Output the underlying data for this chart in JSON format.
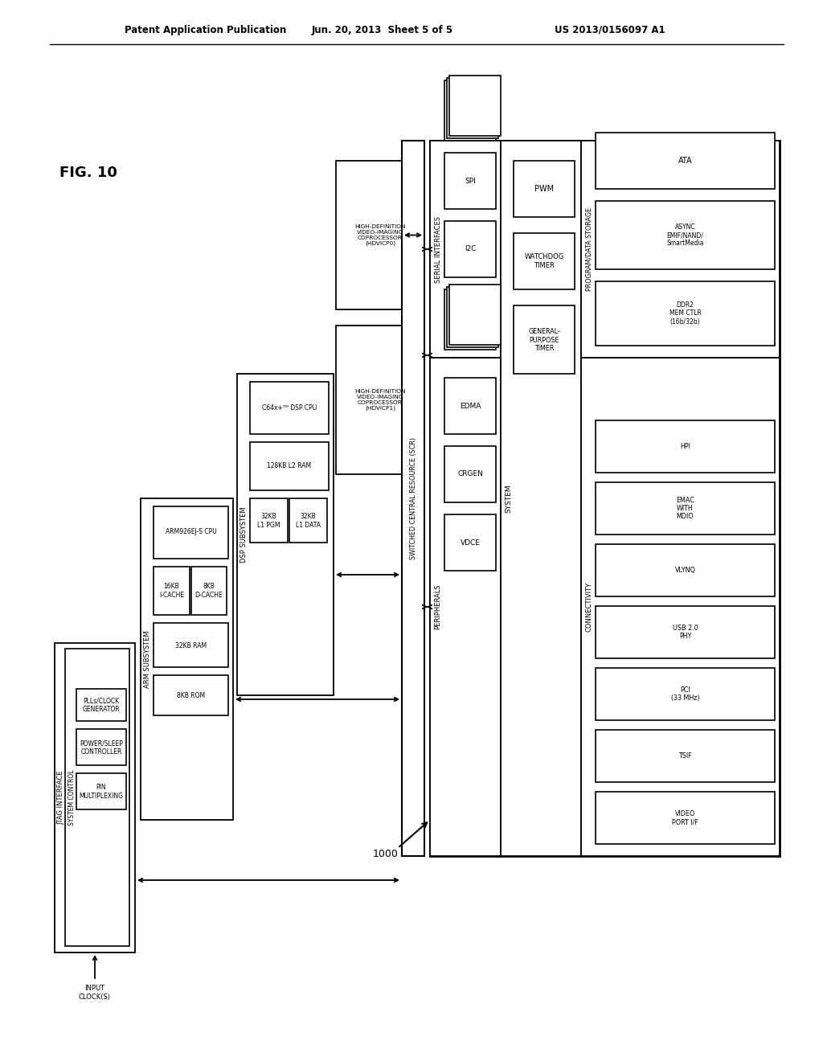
{
  "header_left": "Patent Application Publication",
  "header_center": "Jun. 20, 2013  Sheet 5 of 5",
  "header_right": "US 2013/0156097 A1",
  "bg_color": "#ffffff",
  "fig_label": "FIG. 10",
  "diagram_label": "1000"
}
